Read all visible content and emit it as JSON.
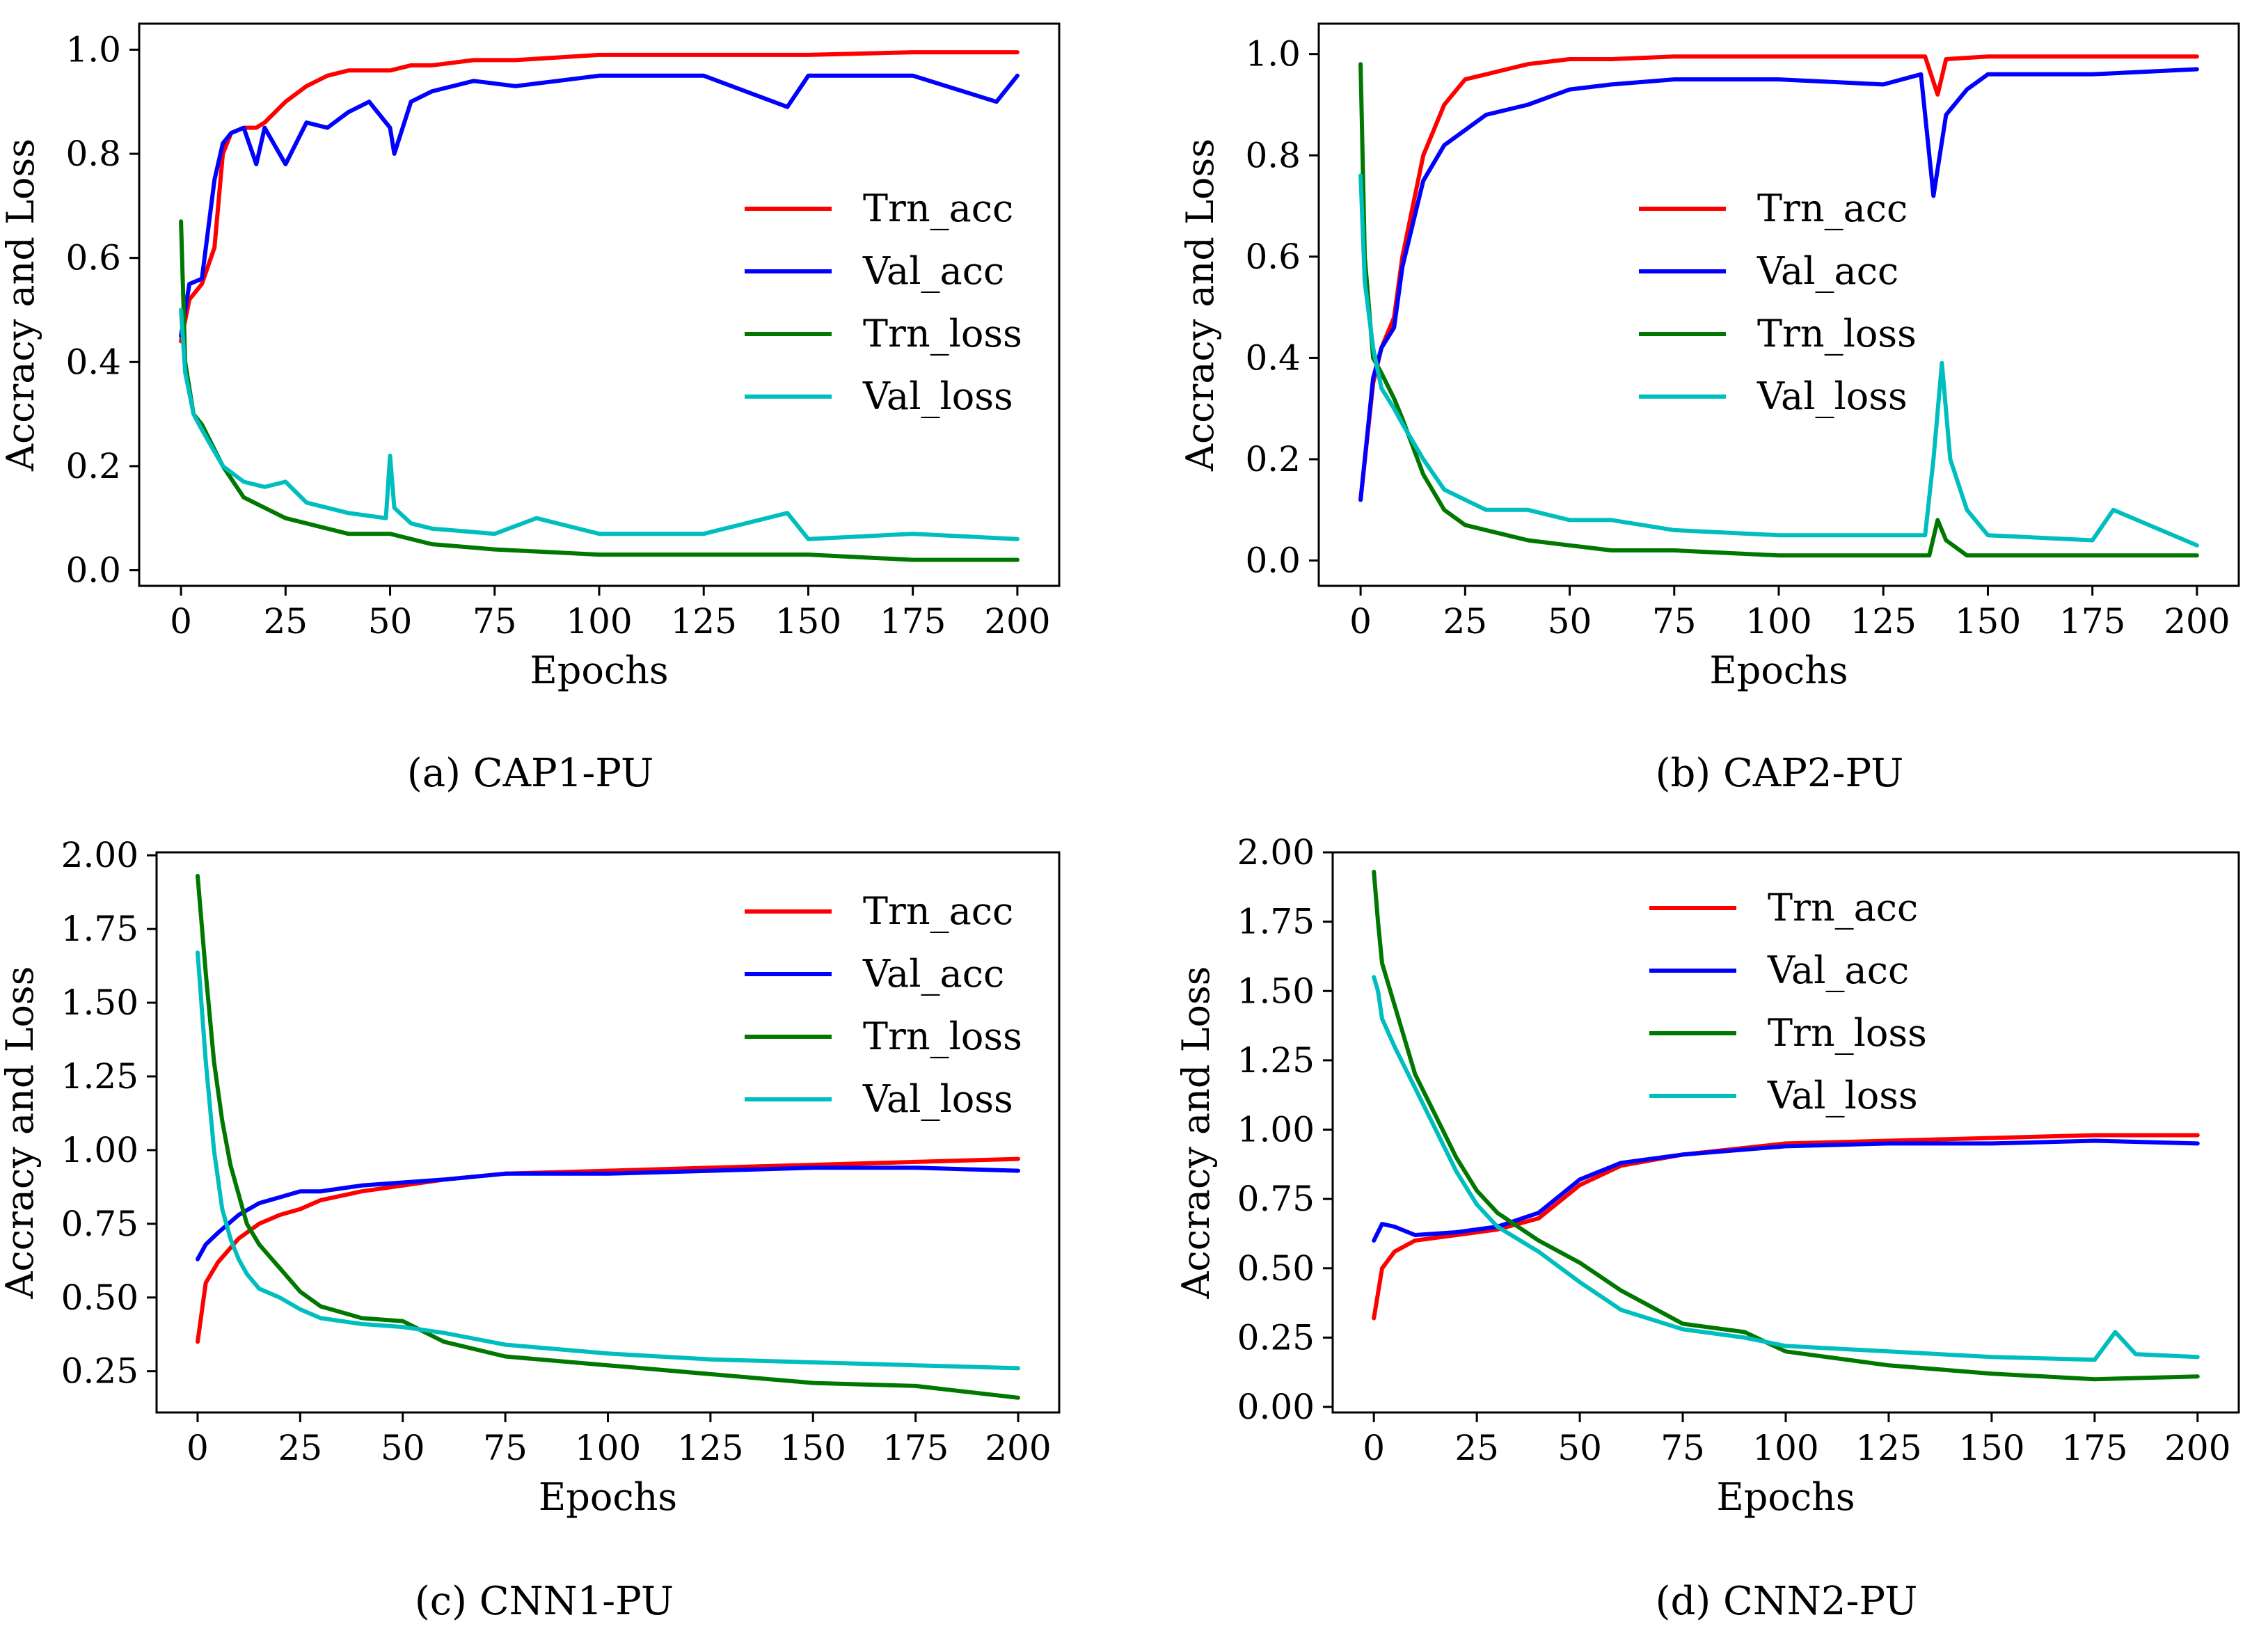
{
  "figure": {
    "chart_data": [
      {
        "type": "line",
        "caption": "(a) CAP1-PU",
        "xlabel": "Epochs",
        "ylabel": "Accracy and Loss",
        "xlim": [
          -10,
          210
        ],
        "ylim": [
          -0.03,
          1.05
        ],
        "xticks": [
          0,
          25,
          50,
          75,
          100,
          125,
          150,
          175,
          200
        ],
        "yticks": [
          0.0,
          0.2,
          0.4,
          0.6,
          0.8,
          1.0
        ],
        "ytick_labels": [
          "0.0",
          "0.2",
          "0.4",
          "0.6",
          "0.8",
          "1.0"
        ],
        "legend_position": "center-right",
        "series": [
          {
            "name": "Trn_acc",
            "color": "#ff0000",
            "x": [
              0,
              2,
              5,
              8,
              10,
              12,
              15,
              18,
              20,
              25,
              30,
              35,
              40,
              45,
              50,
              55,
              60,
              70,
              80,
              90,
              100,
              125,
              150,
              175,
              200
            ],
            "y": [
              0.44,
              0.52,
              0.55,
              0.62,
              0.8,
              0.84,
              0.85,
              0.85,
              0.86,
              0.9,
              0.93,
              0.95,
              0.96,
              0.96,
              0.96,
              0.97,
              0.97,
              0.98,
              0.98,
              0.985,
              0.99,
              0.99,
              0.99,
              0.995,
              0.995
            ]
          },
          {
            "name": "Val_acc",
            "color": "#0000ff",
            "x": [
              0,
              2,
              5,
              8,
              10,
              12,
              15,
              18,
              20,
              25,
              30,
              35,
              40,
              45,
              50,
              51,
              55,
              60,
              70,
              80,
              90,
              100,
              125,
              145,
              150,
              175,
              195,
              200
            ],
            "y": [
              0.45,
              0.55,
              0.56,
              0.75,
              0.82,
              0.84,
              0.85,
              0.78,
              0.85,
              0.78,
              0.86,
              0.85,
              0.88,
              0.9,
              0.85,
              0.8,
              0.9,
              0.92,
              0.94,
              0.93,
              0.94,
              0.95,
              0.95,
              0.89,
              0.95,
              0.95,
              0.9,
              0.95
            ]
          },
          {
            "name": "Trn_loss",
            "color": "#007800",
            "x": [
              0,
              1,
              3,
              5,
              10,
              15,
              20,
              25,
              30,
              40,
              50,
              60,
              75,
              100,
              125,
              150,
              175,
              200
            ],
            "y": [
              0.67,
              0.4,
              0.3,
              0.28,
              0.2,
              0.14,
              0.12,
              0.1,
              0.09,
              0.07,
              0.07,
              0.05,
              0.04,
              0.03,
              0.03,
              0.03,
              0.02,
              0.02
            ]
          },
          {
            "name": "Val_loss",
            "color": "#00bebe",
            "x": [
              0,
              1,
              3,
              5,
              10,
              15,
              20,
              25,
              30,
              40,
              49,
              50,
              51,
              55,
              60,
              75,
              85,
              100,
              125,
              145,
              150,
              175,
              200
            ],
            "y": [
              0.5,
              0.38,
              0.3,
              0.27,
              0.2,
              0.17,
              0.16,
              0.17,
              0.13,
              0.11,
              0.1,
              0.22,
              0.12,
              0.09,
              0.08,
              0.07,
              0.1,
              0.07,
              0.07,
              0.11,
              0.06,
              0.07,
              0.06
            ]
          }
        ]
      },
      {
        "type": "line",
        "caption": "(b) CAP2-PU",
        "xlabel": "Epochs",
        "ylabel": "Accracy and Loss",
        "xlim": [
          -10,
          210
        ],
        "ylim": [
          -0.05,
          1.06
        ],
        "xticks": [
          0,
          25,
          50,
          75,
          100,
          125,
          150,
          175,
          200
        ],
        "yticks": [
          0.0,
          0.2,
          0.4,
          0.6,
          0.8,
          1.0
        ],
        "ytick_labels": [
          "0.0",
          "0.2",
          "0.4",
          "0.6",
          "0.8",
          "1.0"
        ],
        "legend_position": "center-right",
        "series": [
          {
            "name": "Trn_acc",
            "color": "#ff0000",
            "x": [
              0,
              3,
              5,
              8,
              10,
              15,
              20,
              25,
              30,
              40,
              50,
              60,
              75,
              100,
              125,
              135,
              138,
              140,
              150,
              175,
              200
            ],
            "y": [
              0.12,
              0.35,
              0.42,
              0.48,
              0.6,
              0.8,
              0.9,
              0.95,
              0.96,
              0.98,
              0.99,
              0.99,
              0.995,
              0.995,
              0.995,
              0.995,
              0.92,
              0.99,
              0.995,
              0.995,
              0.995
            ]
          },
          {
            "name": "Val_acc",
            "color": "#0000ff",
            "x": [
              0,
              3,
              5,
              8,
              10,
              15,
              20,
              25,
              30,
              40,
              50,
              60,
              75,
              100,
              125,
              134,
              137,
              140,
              145,
              150,
              175,
              200
            ],
            "y": [
              0.12,
              0.36,
              0.42,
              0.46,
              0.58,
              0.75,
              0.82,
              0.85,
              0.88,
              0.9,
              0.93,
              0.94,
              0.95,
              0.95,
              0.94,
              0.96,
              0.72,
              0.88,
              0.93,
              0.96,
              0.96,
              0.97
            ]
          },
          {
            "name": "Trn_loss",
            "color": "#007800",
            "x": [
              0,
              1,
              3,
              5,
              8,
              10,
              15,
              20,
              25,
              30,
              40,
              50,
              60,
              75,
              100,
              125,
              136,
              138,
              140,
              145,
              150,
              175,
              200
            ],
            "y": [
              0.98,
              0.6,
              0.4,
              0.37,
              0.32,
              0.28,
              0.17,
              0.1,
              0.07,
              0.06,
              0.04,
              0.03,
              0.02,
              0.02,
              0.01,
              0.01,
              0.01,
              0.08,
              0.04,
              0.01,
              0.01,
              0.01,
              0.01
            ]
          },
          {
            "name": "Val_loss",
            "color": "#00bebe",
            "x": [
              0,
              1,
              3,
              5,
              8,
              10,
              15,
              20,
              25,
              30,
              40,
              50,
              60,
              75,
              100,
              125,
              135,
              137,
              139,
              141,
              145,
              150,
              175,
              180,
              200
            ],
            "y": [
              0.76,
              0.55,
              0.42,
              0.34,
              0.3,
              0.27,
              0.2,
              0.14,
              0.12,
              0.1,
              0.1,
              0.08,
              0.08,
              0.06,
              0.05,
              0.05,
              0.05,
              0.2,
              0.39,
              0.2,
              0.1,
              0.05,
              0.04,
              0.1,
              0.03
            ]
          }
        ]
      },
      {
        "type": "line",
        "caption": "(c) CNN1-PU",
        "xlabel": "Epochs",
        "ylabel": "Accracy and Loss",
        "xlim": [
          -10,
          210
        ],
        "ylim": [
          0.11,
          2.01
        ],
        "xticks": [
          0,
          25,
          50,
          75,
          100,
          125,
          150,
          175,
          200
        ],
        "yticks": [
          0.25,
          0.5,
          0.75,
          1.0,
          1.25,
          1.5,
          1.75,
          2.0
        ],
        "ytick_labels": [
          "0.25",
          "0.50",
          "0.75",
          "1.00",
          "1.25",
          "1.50",
          "1.75",
          "2.00"
        ],
        "legend_position": "top-right",
        "series": [
          {
            "name": "Trn_acc",
            "color": "#ff0000",
            "x": [
              0,
              2,
              5,
              10,
              15,
              20,
              25,
              30,
              40,
              50,
              60,
              75,
              100,
              125,
              150,
              175,
              200
            ],
            "y": [
              0.35,
              0.55,
              0.62,
              0.7,
              0.75,
              0.78,
              0.8,
              0.83,
              0.86,
              0.88,
              0.9,
              0.92,
              0.93,
              0.94,
              0.95,
              0.96,
              0.97
            ]
          },
          {
            "name": "Val_acc",
            "color": "#0000ff",
            "x": [
              0,
              2,
              5,
              10,
              15,
              20,
              25,
              30,
              40,
              50,
              60,
              75,
              100,
              125,
              150,
              175,
              200
            ],
            "y": [
              0.63,
              0.68,
              0.72,
              0.78,
              0.82,
              0.84,
              0.86,
              0.86,
              0.88,
              0.89,
              0.9,
              0.92,
              0.92,
              0.93,
              0.94,
              0.94,
              0.93
            ]
          },
          {
            "name": "Trn_loss",
            "color": "#007800",
            "x": [
              0,
              2,
              4,
              6,
              8,
              10,
              12,
              15,
              20,
              25,
              30,
              40,
              50,
              60,
              75,
              100,
              125,
              150,
              175,
              200
            ],
            "y": [
              1.93,
              1.6,
              1.3,
              1.1,
              0.95,
              0.85,
              0.75,
              0.68,
              0.6,
              0.52,
              0.47,
              0.43,
              0.42,
              0.35,
              0.3,
              0.27,
              0.24,
              0.21,
              0.2,
              0.16
            ]
          },
          {
            "name": "Val_loss",
            "color": "#00bebe",
            "x": [
              0,
              2,
              4,
              6,
              8,
              10,
              12,
              15,
              20,
              25,
              30,
              40,
              50,
              60,
              75,
              100,
              125,
              150,
              175,
              200
            ],
            "y": [
              1.67,
              1.3,
              1.0,
              0.8,
              0.7,
              0.63,
              0.58,
              0.53,
              0.5,
              0.46,
              0.43,
              0.41,
              0.4,
              0.38,
              0.34,
              0.31,
              0.29,
              0.28,
              0.27,
              0.26
            ]
          }
        ]
      },
      {
        "type": "line",
        "caption": "(d) CNN2-PU",
        "xlabel": "Epochs",
        "ylabel": "Accracy and Loss",
        "xlim": [
          -10,
          210
        ],
        "ylim": [
          -0.02,
          2.0
        ],
        "xticks": [
          0,
          25,
          50,
          75,
          100,
          125,
          150,
          175,
          200
        ],
        "yticks": [
          0.0,
          0.25,
          0.5,
          0.75,
          1.0,
          1.25,
          1.5,
          1.75,
          2.0
        ],
        "ytick_labels": [
          "0.00",
          "0.25",
          "0.50",
          "0.75",
          "1.00",
          "1.25",
          "1.50",
          "1.75",
          "2.00"
        ],
        "legend_position": "top-right",
        "series": [
          {
            "name": "Trn_acc",
            "color": "#ff0000",
            "x": [
              0,
              2,
              5,
              10,
              20,
              30,
              40,
              50,
              60,
              75,
              100,
              125,
              150,
              175,
              200
            ],
            "y": [
              0.32,
              0.5,
              0.56,
              0.6,
              0.62,
              0.64,
              0.68,
              0.8,
              0.87,
              0.91,
              0.95,
              0.96,
              0.97,
              0.98,
              0.98
            ]
          },
          {
            "name": "Val_acc",
            "color": "#0000ff",
            "x": [
              0,
              2,
              5,
              10,
              20,
              30,
              40,
              50,
              60,
              75,
              100,
              125,
              150,
              175,
              200
            ],
            "y": [
              0.6,
              0.66,
              0.65,
              0.62,
              0.63,
              0.65,
              0.7,
              0.82,
              0.88,
              0.91,
              0.94,
              0.95,
              0.95,
              0.96,
              0.95
            ]
          },
          {
            "name": "Trn_loss",
            "color": "#007800",
            "x": [
              0,
              1,
              2,
              5,
              10,
              15,
              20,
              25,
              30,
              40,
              50,
              60,
              75,
              90,
              100,
              125,
              150,
              175,
              200
            ],
            "y": [
              1.93,
              1.75,
              1.6,
              1.45,
              1.2,
              1.05,
              0.9,
              0.78,
              0.7,
              0.6,
              0.52,
              0.42,
              0.3,
              0.27,
              0.2,
              0.15,
              0.12,
              0.1,
              0.11
            ]
          },
          {
            "name": "Val_loss",
            "color": "#00bebe",
            "x": [
              0,
              1,
              2,
              5,
              10,
              15,
              20,
              25,
              30,
              40,
              50,
              60,
              75,
              90,
              100,
              125,
              150,
              175,
              180,
              185,
              200
            ],
            "y": [
              1.55,
              1.5,
              1.4,
              1.3,
              1.15,
              1.0,
              0.85,
              0.73,
              0.65,
              0.56,
              0.45,
              0.35,
              0.28,
              0.25,
              0.22,
              0.2,
              0.18,
              0.17,
              0.27,
              0.19,
              0.18
            ]
          }
        ]
      }
    ]
  }
}
